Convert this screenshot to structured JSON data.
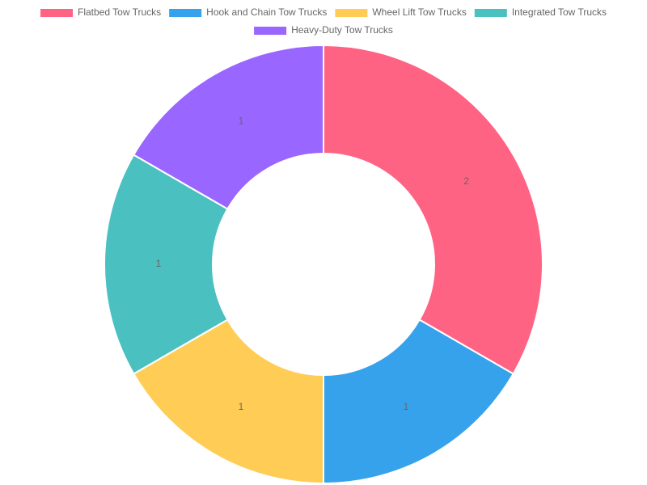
{
  "chart_data": {
    "type": "doughnut",
    "categories": [
      "Flatbed Tow Trucks",
      "Hook and Chain Tow Trucks",
      "Wheel Lift Tow Trucks",
      "Integrated Tow Trucks",
      "Heavy-Duty Tow Trucks"
    ],
    "values": [
      2,
      1,
      1,
      1,
      1
    ],
    "colors": [
      "#ff6384",
      "#36a2eb",
      "#ffcd56",
      "#4bc0c0",
      "#9966ff"
    ],
    "legend": "top"
  }
}
